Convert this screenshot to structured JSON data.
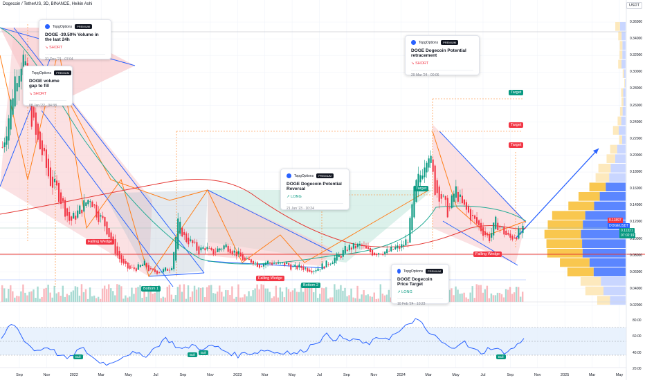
{
  "header": {
    "symbol": "Dogecoin / TetherUS, 3D, BINANCE, Heikin Ashi",
    "currency": "USDT"
  },
  "chart_data": [
    {
      "type": "line",
      "title": "",
      "price_axis": {
        "ticks": [
          "0.36000",
          "0.34000",
          "0.32000",
          "0.30000",
          "0.28000",
          "0.26000",
          "0.24000",
          "0.22000",
          "0.20000",
          "0.18000",
          "0.16000",
          "0.14000",
          "0.12000",
          "0.10000",
          "0.08000",
          "0.06000",
          "0.04000",
          "0.02000"
        ],
        "values": [
          0.36,
          0.34,
          0.32,
          0.3,
          0.28,
          0.26,
          0.24,
          0.22,
          0.2,
          0.18,
          0.16,
          0.14,
          0.12,
          0.1,
          0.08,
          0.06,
          0.04,
          0.02
        ],
        "ylim": [
          0.02,
          0.36
        ]
      },
      "time_axis": {
        "ticks": [
          "Sep",
          "Nov",
          "2022",
          "Mar",
          "May",
          "Jul",
          "Sep",
          "Nov",
          "2023",
          "Mar",
          "May",
          "Jul",
          "Sep",
          "Nov",
          "2024",
          "Mar",
          "May",
          "Jul",
          "Sep",
          "Nov",
          "2025",
          "Mar",
          "May"
        ]
      },
      "series": [
        {
          "name": "DOGEUSDT",
          "approx_close": [
            0.21,
            0.25,
            0.3,
            0.32,
            0.26,
            0.22,
            0.2,
            0.17,
            0.16,
            0.14,
            0.12,
            0.13,
            0.14,
            0.15,
            0.13,
            0.12,
            0.1,
            0.08,
            0.067,
            0.063,
            0.065,
            0.07,
            0.06,
            0.061,
            0.062,
            0.066,
            0.12,
            0.1,
            0.095,
            0.085,
            0.09,
            0.082,
            0.088,
            0.092,
            0.086,
            0.08,
            0.072,
            0.074,
            0.068,
            0.072,
            0.071,
            0.069,
            0.07,
            0.065,
            0.066,
            0.064,
            0.063,
            0.066,
            0.07,
            0.076,
            0.08,
            0.089,
            0.09,
            0.092,
            0.085,
            0.083,
            0.085,
            0.084,
            0.088,
            0.09,
            0.1,
            0.16,
            0.18,
            0.21,
            0.16,
            0.15,
            0.13,
            0.16,
            0.14,
            0.13,
            0.12,
            0.11,
            0.1,
            0.12,
            0.11,
            0.1,
            0.105,
            0.109
          ]
        }
      ],
      "current_price": "0.11321",
      "countdown": "07:02:19",
      "price_label_top": "0.11897",
      "ticker_label": "DOGEUSDT",
      "horizontal_levels": [
        0.082
      ],
      "targets": [
        {
          "label": "Target",
          "price": 0.262
        },
        {
          "label": "Target",
          "price": 0.23
        },
        {
          "label": "Target",
          "price": 0.205
        },
        {
          "label": "Target",
          "price": 0.159
        }
      ],
      "pattern_labels": [
        "Falling Wedge",
        "Falling Wedge",
        "Falling Wedge"
      ],
      "bottom_labels": [
        "Bottom 1",
        "Bottom 2"
      ]
    },
    {
      "type": "line",
      "title": "",
      "name": "RSI",
      "ylim": [
        20,
        90
      ],
      "ticks": [
        "80.00",
        "60.00",
        "40.00",
        "20.00"
      ],
      "tick_values": [
        80,
        60,
        40,
        20
      ],
      "band": [
        30,
        70
      ],
      "values": [
        55,
        72,
        75,
        60,
        50,
        42,
        45,
        48,
        40,
        35,
        32,
        42,
        45,
        38,
        30,
        28,
        26,
        32,
        36,
        40,
        38,
        35,
        42,
        48,
        58,
        54,
        46,
        44,
        50,
        47,
        44,
        49,
        46,
        42,
        39,
        36,
        41,
        39,
        42,
        44,
        41,
        40,
        42,
        38,
        41,
        45,
        52,
        56,
        62,
        57,
        60,
        54,
        58,
        52,
        51,
        55,
        60,
        58,
        63,
        67,
        76,
        81,
        75,
        64,
        60,
        52,
        46,
        49,
        55,
        46,
        42,
        40,
        47,
        44,
        41,
        43,
        50,
        56
      ],
      "badges": [
        "Bull",
        "Bull",
        "Bull",
        "Bull"
      ]
    }
  ],
  "ideas": [
    {
      "author": "TopgOptions",
      "title": "DOGE -39.50% Volume in the last 24h",
      "direction": "SHORT",
      "date": "31 Dec '21 · 07:04"
    },
    {
      "author": "TopgOptions",
      "title": "DOGE volume gap to fill",
      "direction": "SHORT",
      "date": "08 Jan '22 · 04:38"
    },
    {
      "author": "TopgOptions",
      "title": "DOGE Dogecoin Potential Reversal",
      "direction": "LONG",
      "date": "21 Jun '23 · 10:24"
    },
    {
      "author": "TopgOptions",
      "title": "DOGE Dogecoin Price Target",
      "direction": "LONG",
      "date": "10 Feb '24 · 10:23"
    },
    {
      "author": "TopgOptions",
      "title": "DOGE Dogecoin Potential retracement",
      "direction": "SHORT",
      "date": "29 Mar '24 · 00:06"
    }
  ],
  "idea_badge": "PREMIUM",
  "colors": {
    "candle_up": "#089981",
    "candle_down": "#f23645",
    "ma_green": "#22ab94",
    "ma_red": "#e53935",
    "trendline_blue": "#2962ff",
    "trendline_orange": "#ff7f1a",
    "rsi": "#2962ff",
    "vp_blue": "#5b86ff",
    "vp_yellow": "#f9c74f"
  }
}
